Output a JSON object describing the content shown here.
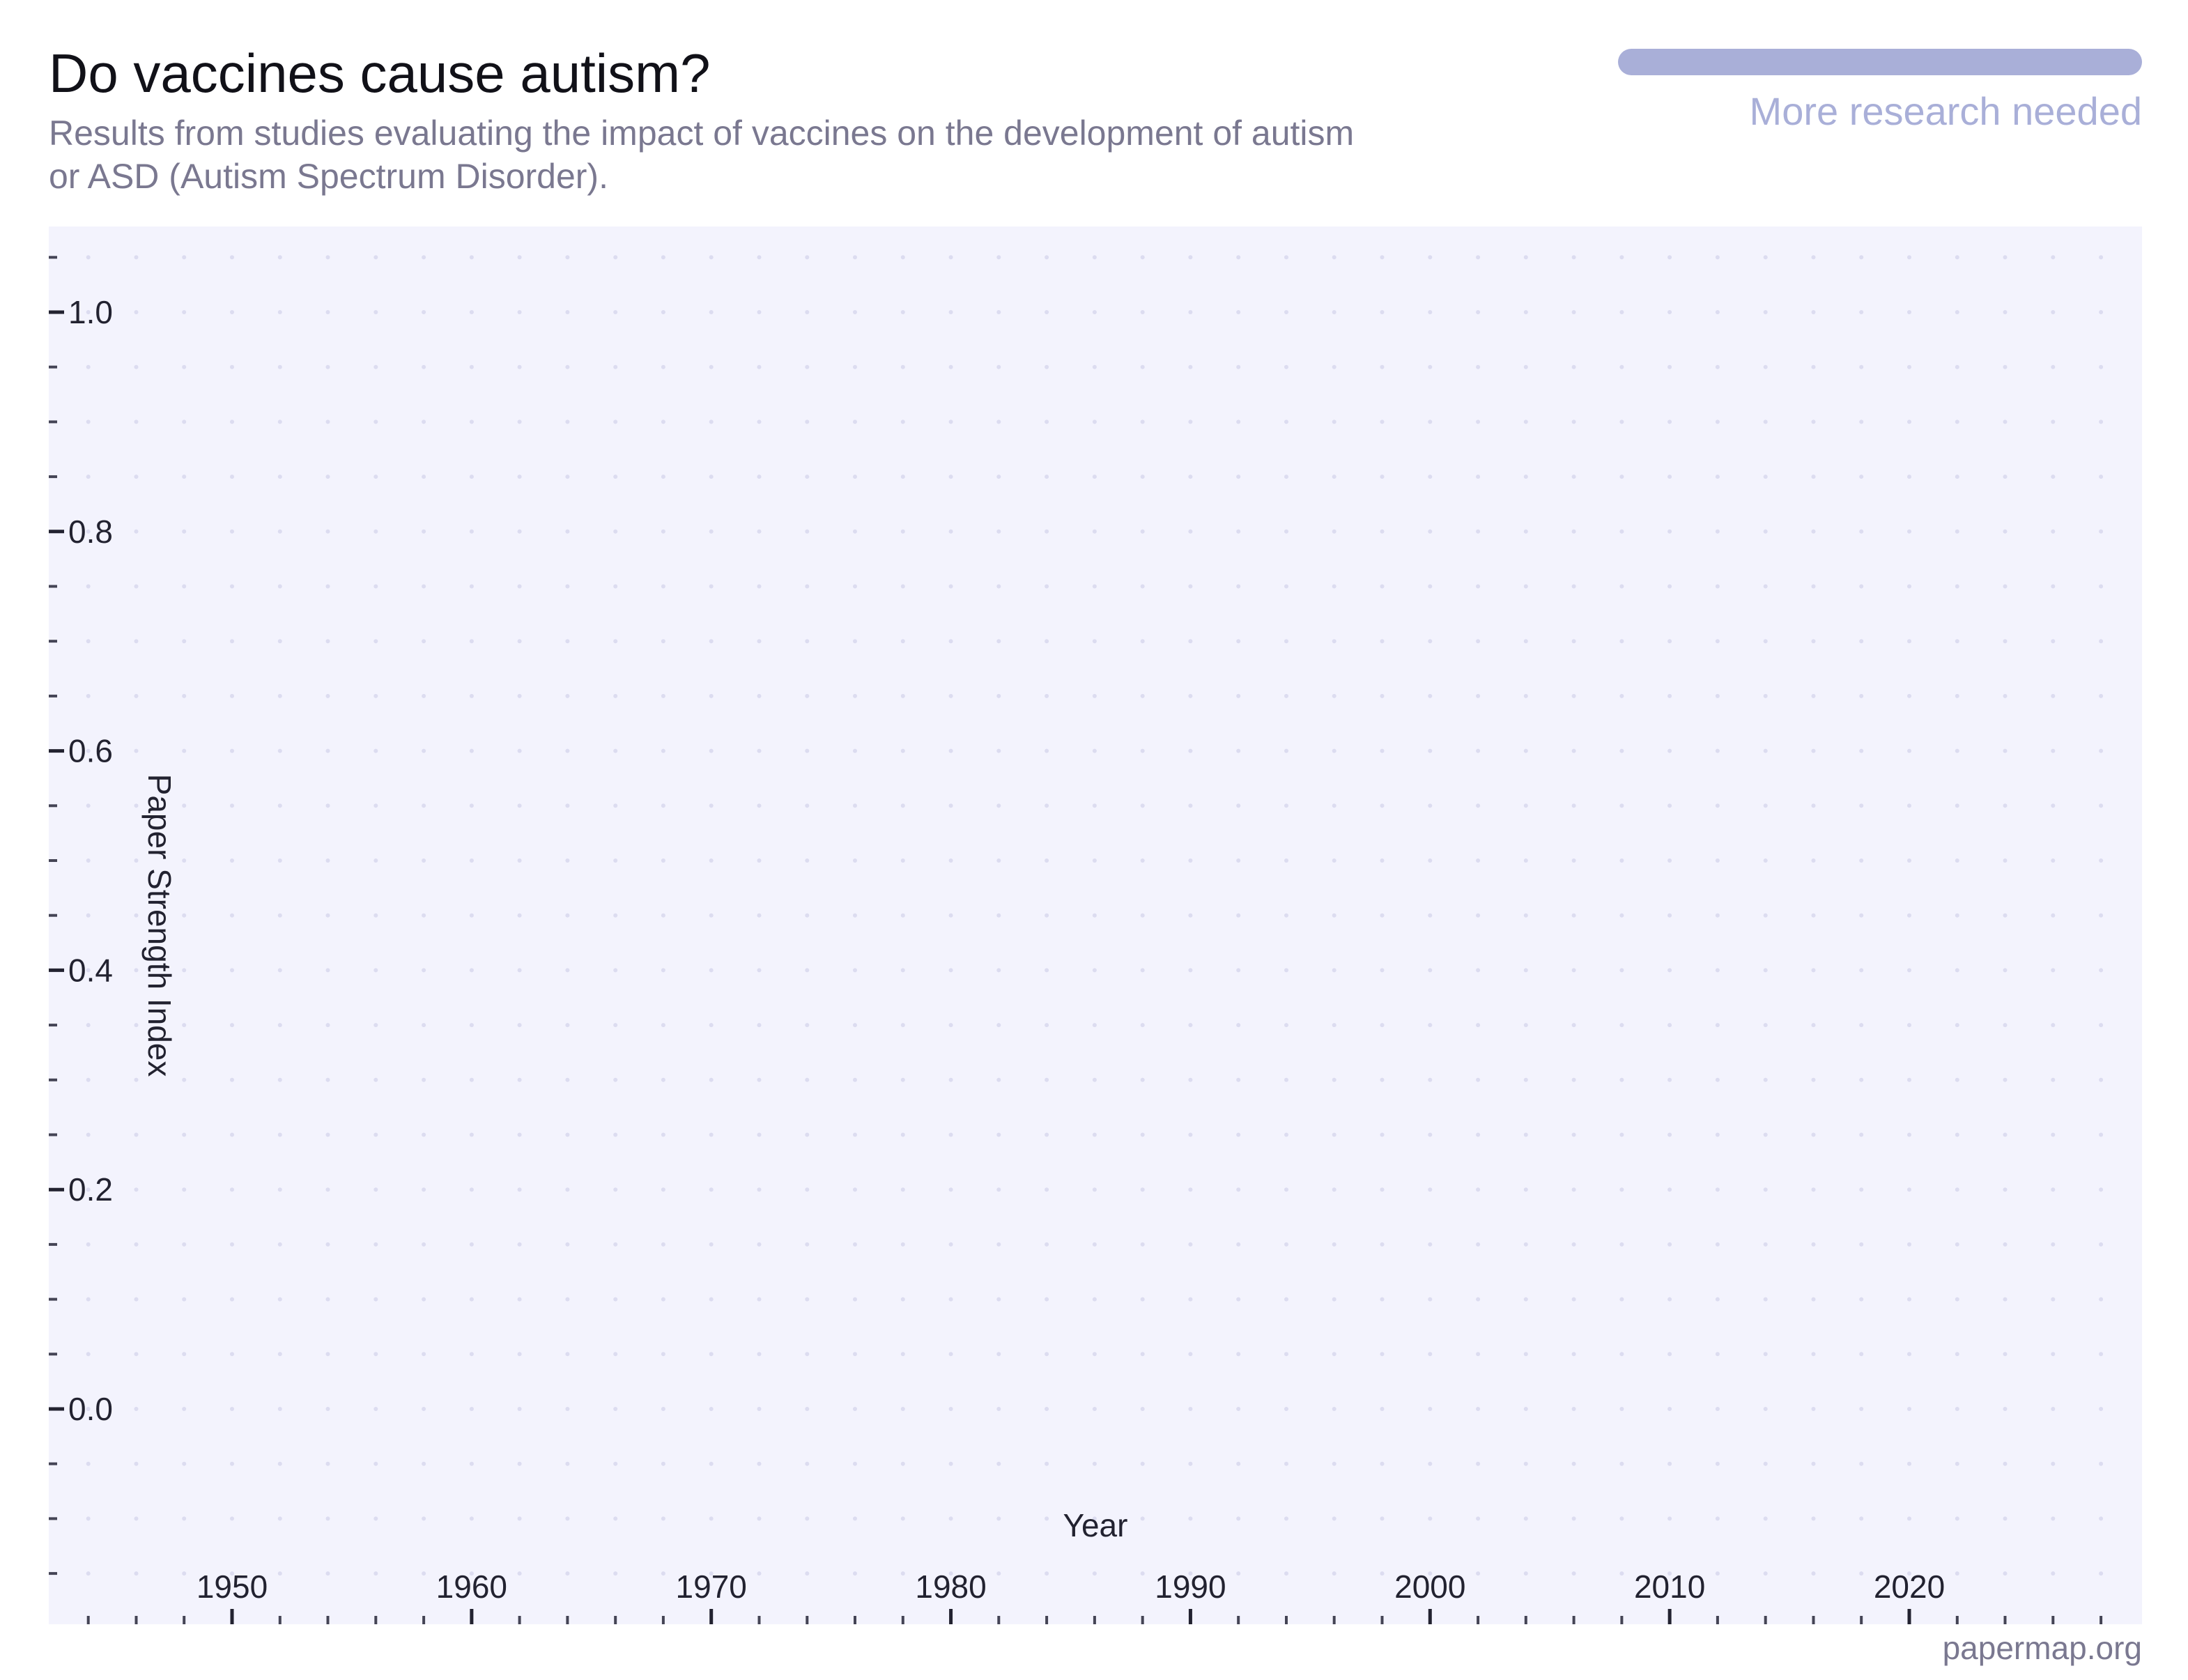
{
  "header": {
    "title": "Do vaccines cause autism?",
    "subtitle": "Results from studies evaluating the impact of vaccines on the development of autism or ASD (Autism Spectrum Disorder)."
  },
  "status": {
    "label": "More research needed",
    "color": "#a9afd8"
  },
  "footer": {
    "site": "papermap.org"
  },
  "chart_data": {
    "type": "scatter",
    "title": "Do vaccines cause autism?",
    "xlabel": "Year",
    "ylabel": "Paper Strength Index",
    "xlim": [
      1943,
      2028
    ],
    "ylim": [
      -0.15,
      1.1
    ],
    "x_ticks": [
      1950,
      1960,
      1970,
      1980,
      1990,
      2000,
      2010,
      2020
    ],
    "x_tick_labels": [
      "1950",
      "1960",
      "1970",
      "1980",
      "1990",
      "2000",
      "2010",
      "2020"
    ],
    "y_ticks": [
      0.0,
      0.2,
      0.4,
      0.6,
      0.8,
      1.0
    ],
    "y_tick_labels": [
      "0.0",
      "0.2",
      "0.4",
      "0.6",
      "0.8",
      "1.0"
    ],
    "grid": "dotted",
    "background_color": "#f3f3fd",
    "series": [
      {
        "points": []
      }
    ]
  }
}
